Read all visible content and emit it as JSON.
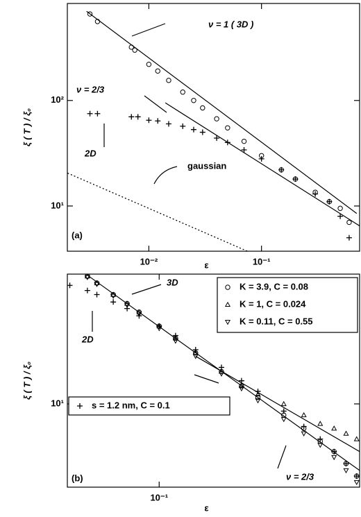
{
  "chart_data": [
    {
      "type": "scatter",
      "xlog": true,
      "ylog": true,
      "x_label": "ε",
      "y_label": "ξ ( T ) / ξ₀",
      "xlim": [
        0.00189,
        0.743
      ],
      "ylim": [
        3.73,
        830
      ],
      "xticks": [
        {
          "value": 0.01,
          "label": "10⁻²"
        },
        {
          "value": 0.1,
          "label": "10⁻¹"
        }
      ],
      "yticks": [
        {
          "value": 10,
          "label": "10¹"
        },
        {
          "value": 100,
          "label": "10²"
        }
      ],
      "annotations": [
        "ν = 1  ( 3D )",
        "ν = 2/3",
        "2D",
        "gaussian",
        "(a)"
      ],
      "series": [
        {
          "marker": "circle",
          "color": "#000",
          "x": [
            0.003,
            0.0035,
            0.007,
            0.0075,
            0.01,
            0.012,
            0.015,
            0.02,
            0.025,
            0.03,
            0.04,
            0.05,
            0.07,
            0.1,
            0.15,
            0.2,
            0.3,
            0.4,
            0.5,
            0.6
          ],
          "values": [
            660,
            560,
            320,
            300,
            220,
            190,
            155,
            120,
            100,
            85,
            67,
            55,
            41,
            30,
            22,
            18,
            13.5,
            11,
            9.5,
            7
          ]
        },
        {
          "marker": "plus",
          "color": "#000",
          "x": [
            0.003,
            0.0035,
            0.007,
            0.008,
            0.01,
            0.012,
            0.015,
            0.02,
            0.025,
            0.03,
            0.04,
            0.05,
            0.07,
            0.1,
            0.15,
            0.2,
            0.3,
            0.4,
            0.5,
            0.6
          ],
          "values": [
            75,
            75,
            70,
            70,
            65,
            64,
            60,
            57,
            53,
            50,
            44,
            40,
            34,
            28,
            22,
            18,
            13,
            11,
            8,
            5
          ]
        },
        {
          "marker": "line",
          "color": "#000",
          "x": [
            0.0028,
            0.7
          ],
          "values": [
            700,
            8.5
          ]
        },
        {
          "marker": "line",
          "color": "#000",
          "x": [
            0.014,
            0.74
          ],
          "values": [
            95,
            6.5
          ]
        },
        {
          "marker": "dotted",
          "color": "#000",
          "x": [
            0.0019,
            0.075
          ],
          "values": [
            20.5,
            3.73
          ]
        }
      ]
    },
    {
      "type": "scatter",
      "xlog": true,
      "ylog": true,
      "x_label": "ε",
      "y_label": "ξ ( T ) / ξ₀",
      "xlim": [
        0.036,
        0.93
      ],
      "ylim": [
        2.98,
        66
      ],
      "xticks": [
        {
          "value": 0.1,
          "label": "10⁻¹"
        }
      ],
      "yticks": [
        {
          "value": 10,
          "label": "10¹"
        }
      ],
      "annotations": [
        "3D",
        "2D",
        "ν = 2/3",
        "(b)"
      ],
      "series": [
        {
          "name": "K = 3.9,    C = 0.08",
          "marker": "circle",
          "color": "#000",
          "x": [
            0.045,
            0.05,
            0.06,
            0.07,
            0.08,
            0.1,
            0.12,
            0.15,
            0.2,
            0.25,
            0.3,
            0.4,
            0.5,
            0.6,
            0.7,
            0.8,
            0.9
          ],
          "values": [
            64,
            58,
            49,
            43,
            38,
            31,
            26,
            21,
            16,
            13,
            11,
            8.5,
            7,
            5.8,
            5,
            4.2,
            3.5
          ]
        },
        {
          "name": "K = 1,        C = 0.024",
          "marker": "triangle",
          "color": "#000",
          "x": [
            0.045,
            0.05,
            0.06,
            0.07,
            0.08,
            0.1,
            0.12,
            0.15,
            0.2,
            0.25,
            0.3,
            0.4,
            0.5,
            0.6,
            0.7,
            0.8,
            0.9
          ],
          "values": [
            64,
            58,
            49,
            43,
            38,
            31,
            26,
            21,
            16,
            13,
            11.5,
            10,
            8.5,
            7.5,
            7,
            6.5,
            6
          ]
        },
        {
          "name": "K = 0.11,  C = 0.55",
          "marker": "triangle-down",
          "color": "#000",
          "x": [
            0.045,
            0.05,
            0.06,
            0.07,
            0.08,
            0.1,
            0.12,
            0.15,
            0.2,
            0.25,
            0.3,
            0.4,
            0.5,
            0.6,
            0.7,
            0.8,
            0.9
          ],
          "values": [
            63,
            57,
            48,
            42,
            37,
            30,
            25,
            20,
            15.5,
            12.5,
            10.5,
            8,
            6.5,
            5.5,
            4.6,
            3.8,
            3.2
          ]
        },
        {
          "name": "s = 1.2 nm,  C = 0.1",
          "marker": "plus",
          "color": "#000",
          "x": [
            0.037,
            0.045,
            0.05,
            0.06,
            0.07,
            0.08,
            0.1,
            0.12,
            0.15,
            0.2,
            0.25,
            0.3,
            0.4,
            0.5,
            0.6,
            0.7,
            0.8,
            0.9
          ],
          "values": [
            56,
            52,
            49,
            44,
            40,
            36,
            31,
            27,
            22,
            17,
            14,
            12,
            9,
            7.2,
            6,
            5,
            4.2,
            3.5
          ]
        },
        {
          "marker": "line",
          "color": "#000",
          "x": [
            0.045,
            0.93
          ],
          "values": [
            65,
            3.8
          ]
        },
        {
          "marker": "line",
          "color": "#000",
          "x": [
            0.15,
            0.93
          ],
          "values": [
            20,
            5
          ]
        }
      ]
    }
  ]
}
